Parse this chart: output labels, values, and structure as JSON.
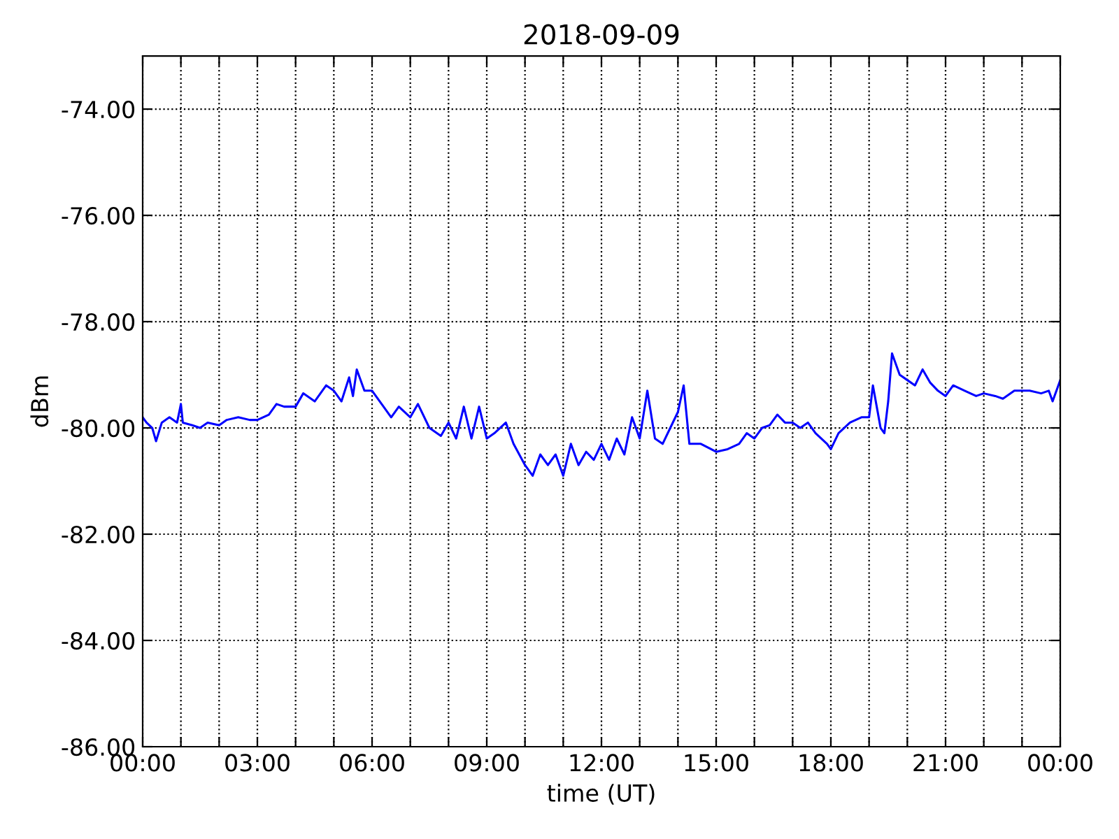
{
  "chart_data": {
    "type": "line",
    "title": "2018-09-09",
    "xlabel": "time (UT)",
    "ylabel": "dBm",
    "x": [
      0.0,
      0.1,
      0.25,
      0.35,
      0.5,
      0.7,
      0.9,
      1.0,
      1.05,
      1.3,
      1.5,
      1.7,
      2.0,
      2.2,
      2.5,
      2.8,
      3.0,
      3.3,
      3.5,
      3.7,
      4.0,
      4.2,
      4.5,
      4.8,
      5.0,
      5.2,
      5.4,
      5.5,
      5.6,
      5.8,
      6.0,
      6.3,
      6.5,
      6.7,
      7.0,
      7.2,
      7.5,
      7.8,
      8.0,
      8.2,
      8.4,
      8.6,
      8.8,
      9.0,
      9.2,
      9.5,
      9.7,
      10.0,
      10.2,
      10.4,
      10.6,
      10.8,
      11.0,
      11.2,
      11.4,
      11.6,
      11.8,
      12.0,
      12.2,
      12.4,
      12.6,
      12.8,
      13.0,
      13.2,
      13.4,
      13.6,
      13.8,
      14.0,
      14.15,
      14.3,
      14.6,
      15.0,
      15.3,
      15.6,
      15.8,
      16.0,
      16.2,
      16.4,
      16.6,
      16.8,
      17.0,
      17.2,
      17.4,
      17.6,
      17.9,
      18.0,
      18.2,
      18.5,
      18.8,
      19.0,
      19.1,
      19.2,
      19.3,
      19.4,
      19.5,
      19.6,
      19.8,
      20.0,
      20.2,
      20.4,
      20.6,
      20.8,
      21.0,
      21.2,
      21.5,
      21.8,
      22.0,
      22.3,
      22.5,
      22.8,
      23.0,
      23.2,
      23.5,
      23.7,
      23.8,
      24.0
    ],
    "series": [
      {
        "color": "#0000ff",
        "values": [
          -79.8,
          -79.9,
          -80.0,
          -80.25,
          -79.9,
          -79.8,
          -79.9,
          -79.55,
          -79.9,
          -79.95,
          -80.0,
          -79.9,
          -79.95,
          -79.85,
          -79.8,
          -79.85,
          -79.85,
          -79.75,
          -79.55,
          -79.6,
          -79.6,
          -79.35,
          -79.5,
          -79.2,
          -79.3,
          -79.5,
          -79.05,
          -79.4,
          -78.9,
          -79.3,
          -79.3,
          -79.6,
          -79.8,
          -79.6,
          -79.8,
          -79.55,
          -80.0,
          -80.15,
          -79.9,
          -80.2,
          -79.6,
          -80.2,
          -79.6,
          -80.2,
          -80.1,
          -79.9,
          -80.3,
          -80.7,
          -80.9,
          -80.5,
          -80.7,
          -80.5,
          -80.9,
          -80.3,
          -80.7,
          -80.45,
          -80.6,
          -80.3,
          -80.6,
          -80.2,
          -80.5,
          -79.8,
          -80.2,
          -79.3,
          -80.2,
          -80.3,
          -80.0,
          -79.7,
          -79.2,
          -80.3,
          -80.3,
          -80.45,
          -80.4,
          -80.3,
          -80.1,
          -80.2,
          -80.0,
          -79.95,
          -79.75,
          -79.9,
          -79.9,
          -80.0,
          -79.9,
          -80.1,
          -80.3,
          -80.4,
          -80.1,
          -79.9,
          -79.8,
          -79.8,
          -79.2,
          -79.6,
          -80.0,
          -80.1,
          -79.5,
          -78.6,
          -79.0,
          -79.1,
          -79.2,
          -78.9,
          -79.15,
          -79.3,
          -79.4,
          -79.2,
          -79.3,
          -79.4,
          -79.35,
          -79.4,
          -79.45,
          -79.3,
          -79.3,
          -79.3,
          -79.35,
          -79.3,
          -79.5,
          -79.1
        ]
      }
    ],
    "xlim": [
      0,
      24
    ],
    "xticks": [
      {
        "value": 0,
        "label": "00:00"
      },
      {
        "value": 1,
        "label": null
      },
      {
        "value": 2,
        "label": null
      },
      {
        "value": 3,
        "label": "03:00"
      },
      {
        "value": 4,
        "label": null
      },
      {
        "value": 5,
        "label": null
      },
      {
        "value": 6,
        "label": "06:00"
      },
      {
        "value": 7,
        "label": null
      },
      {
        "value": 8,
        "label": null
      },
      {
        "value": 9,
        "label": "09:00"
      },
      {
        "value": 10,
        "label": null
      },
      {
        "value": 11,
        "label": null
      },
      {
        "value": 12,
        "label": "12:00"
      },
      {
        "value": 13,
        "label": null
      },
      {
        "value": 14,
        "label": null
      },
      {
        "value": 15,
        "label": "15:00"
      },
      {
        "value": 16,
        "label": null
      },
      {
        "value": 17,
        "label": null
      },
      {
        "value": 18,
        "label": "18:00"
      },
      {
        "value": 19,
        "label": null
      },
      {
        "value": 20,
        "label": null
      },
      {
        "value": 21,
        "label": "21:00"
      },
      {
        "value": 22,
        "label": null
      },
      {
        "value": 23,
        "label": null
      },
      {
        "value": 24,
        "label": "00:00"
      }
    ],
    "ylim": [
      -86,
      -73
    ],
    "yticks": [
      {
        "value": -86,
        "label": "-86.00"
      },
      {
        "value": -84,
        "label": "-84.00"
      },
      {
        "value": -82,
        "label": "-82.00"
      },
      {
        "value": -80,
        "label": "-80.00"
      },
      {
        "value": -78,
        "label": "-78.00"
      },
      {
        "value": -76,
        "label": "-76.00"
      },
      {
        "value": -74,
        "label": "-74.00"
      }
    ],
    "grid": true,
    "line_style": "solid",
    "marker": "none"
  }
}
